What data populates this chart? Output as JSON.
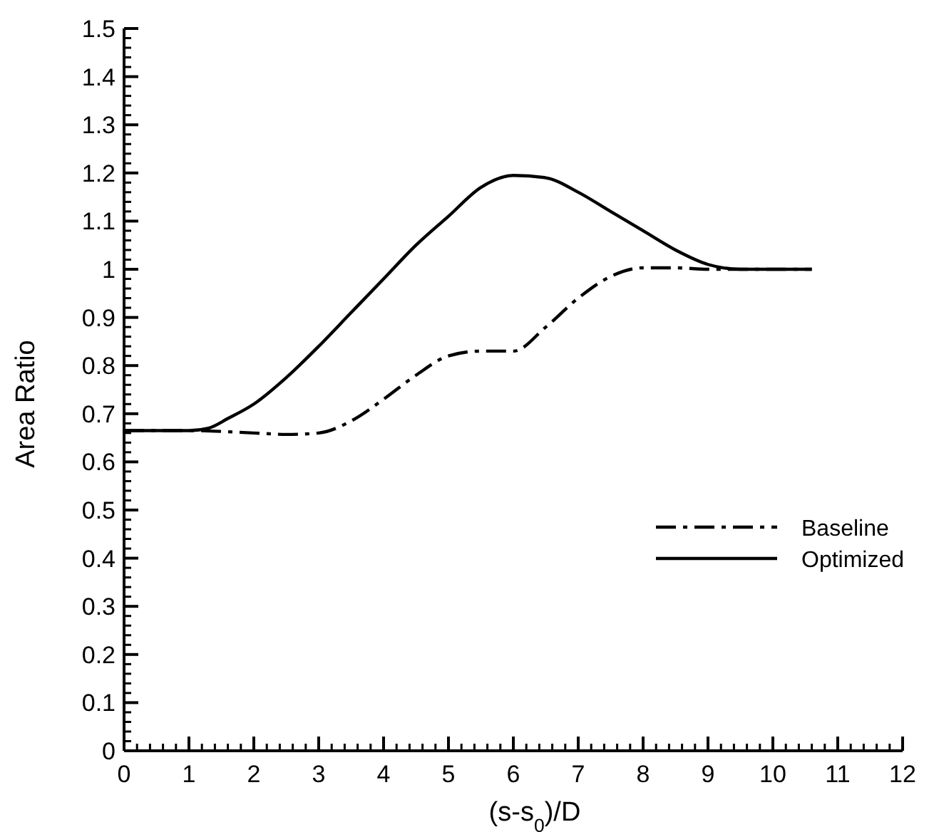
{
  "chart_data": {
    "type": "line",
    "xlabel": "(s-s$_{0}$)/D",
    "ylabel": "Area Ratio",
    "xlim": [
      0,
      12
    ],
    "xticks": [
      0,
      1,
      2,
      3,
      4,
      5,
      6,
      7,
      8,
      9,
      10,
      11,
      12
    ],
    "ylim": [
      0,
      1.5
    ],
    "yticks": [
      0,
      0.1,
      0.2,
      0.3,
      0.4,
      0.5,
      0.6,
      0.7,
      0.8,
      0.9,
      1,
      1.1,
      1.2,
      1.3,
      1.4,
      1.5
    ],
    "grid": false,
    "legend": "right",
    "marker": "none",
    "series": [
      {
        "name": "Baseline",
        "color": "#000000",
        "line_style": "dashdot",
        "x": [
          0,
          1,
          2,
          2.5,
          3,
          3.5,
          4,
          4.5,
          5,
          5.5,
          6,
          6.5,
          7,
          7.5,
          8,
          8.5,
          9,
          10,
          10.6
        ],
        "values": [
          0.665,
          0.665,
          0.66,
          0.657,
          0.66,
          0.685,
          0.73,
          0.78,
          0.82,
          0.83,
          0.83,
          0.88,
          0.94,
          0.985,
          1.003,
          1.003,
          1.0,
          1.0,
          1.0
        ]
      },
      {
        "name": "Optimized",
        "color": "#000000",
        "line_style": "solid",
        "x": [
          0,
          0.5,
          1,
          1.3,
          1.6,
          2,
          2.5,
          3,
          3.5,
          4,
          4.5,
          5,
          5.5,
          6,
          6.5,
          7,
          7.5,
          8,
          8.5,
          9,
          9.5,
          10,
          10.6
        ],
        "values": [
          0.665,
          0.665,
          0.665,
          0.67,
          0.69,
          0.72,
          0.775,
          0.84,
          0.91,
          0.98,
          1.05,
          1.11,
          1.17,
          1.195,
          1.19,
          1.16,
          1.12,
          1.08,
          1.04,
          1.01,
          1.0,
          1.0,
          1.0
        ]
      }
    ]
  }
}
